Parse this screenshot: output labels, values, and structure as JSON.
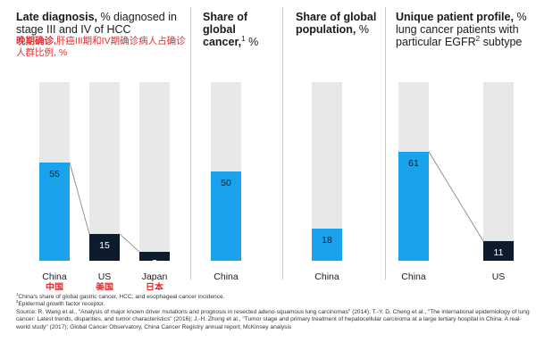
{
  "colors": {
    "china": "#1aa3ec",
    "other": "#0c1c2c",
    "track": "#e8e8e8",
    "cn_text": "#e8282b"
  },
  "panels": {
    "p1": {
      "title_bold": "Late diagnosis,",
      "title_rest": " % diagnosed in stage III and IV of HCC",
      "cn_bold": "晚期确诊,",
      "cn_rest": "肝癌III期和IV期确诊病人占确诊人群比例, %"
    },
    "p2": {
      "title_bold": "Share of global cancer,",
      "sup": "1",
      "title_rest": " %"
    },
    "p3": {
      "title_bold": "Share of global population,",
      "title_rest": " %"
    },
    "p4": {
      "title_bold": "Unique patient profile,",
      "title_rest": "% lung cancer patients with particular EGFR",
      "sup": "2",
      "title_rest2": " subtype"
    }
  },
  "chart_data": [
    {
      "type": "bar",
      "title": "Late diagnosis, % diagnosed in stage III and IV of HCC",
      "categories": [
        "China",
        "US",
        "Japan"
      ],
      "categories_cn": [
        "中国",
        "美国",
        "日本"
      ],
      "values": [
        55,
        15,
        5
      ],
      "ylim": [
        0,
        100
      ],
      "grid": false
    },
    {
      "type": "bar",
      "title": "Share of global cancer, %",
      "categories": [
        "China"
      ],
      "values": [
        50
      ],
      "ylim": [
        0,
        100
      ],
      "grid": false
    },
    {
      "type": "bar",
      "title": "Share of global population, %",
      "categories": [
        "China"
      ],
      "values": [
        18
      ],
      "ylim": [
        0,
        100
      ],
      "grid": false
    },
    {
      "type": "bar",
      "title": "Unique patient profile, % lung cancer patients with particular EGFR subtype",
      "categories": [
        "China",
        "US"
      ],
      "values": [
        61,
        11
      ],
      "ylim": [
        0,
        100
      ],
      "grid": false
    }
  ],
  "footnotes": [
    {
      "sup": "1",
      "text": "China's share of global gastric cancer, HCC, and esophageal cancer incidence."
    },
    {
      "sup": "2",
      "text": "Epidermal growth factor receptor."
    },
    {
      "sup": "",
      "text": "Source: R. Wang et al., \"Analysis of major known driver mutations and prognosis in resected adeno-squamous lung carcinomas\" (2014); T.-Y. D. Cheng et al., \"The international epidemiology of lung cancer: Latest trends, disparities, and tumor characteristics\" (2016); J.-H. Zhong et al., \"Tumor stage and primary treatment of hepatocellular carcinoma at a large tertiary hospital in China: A real-world study\" (2017); Global Cancer Observatory, China Cancer Registry annual report; McKinsey analysis"
    }
  ]
}
